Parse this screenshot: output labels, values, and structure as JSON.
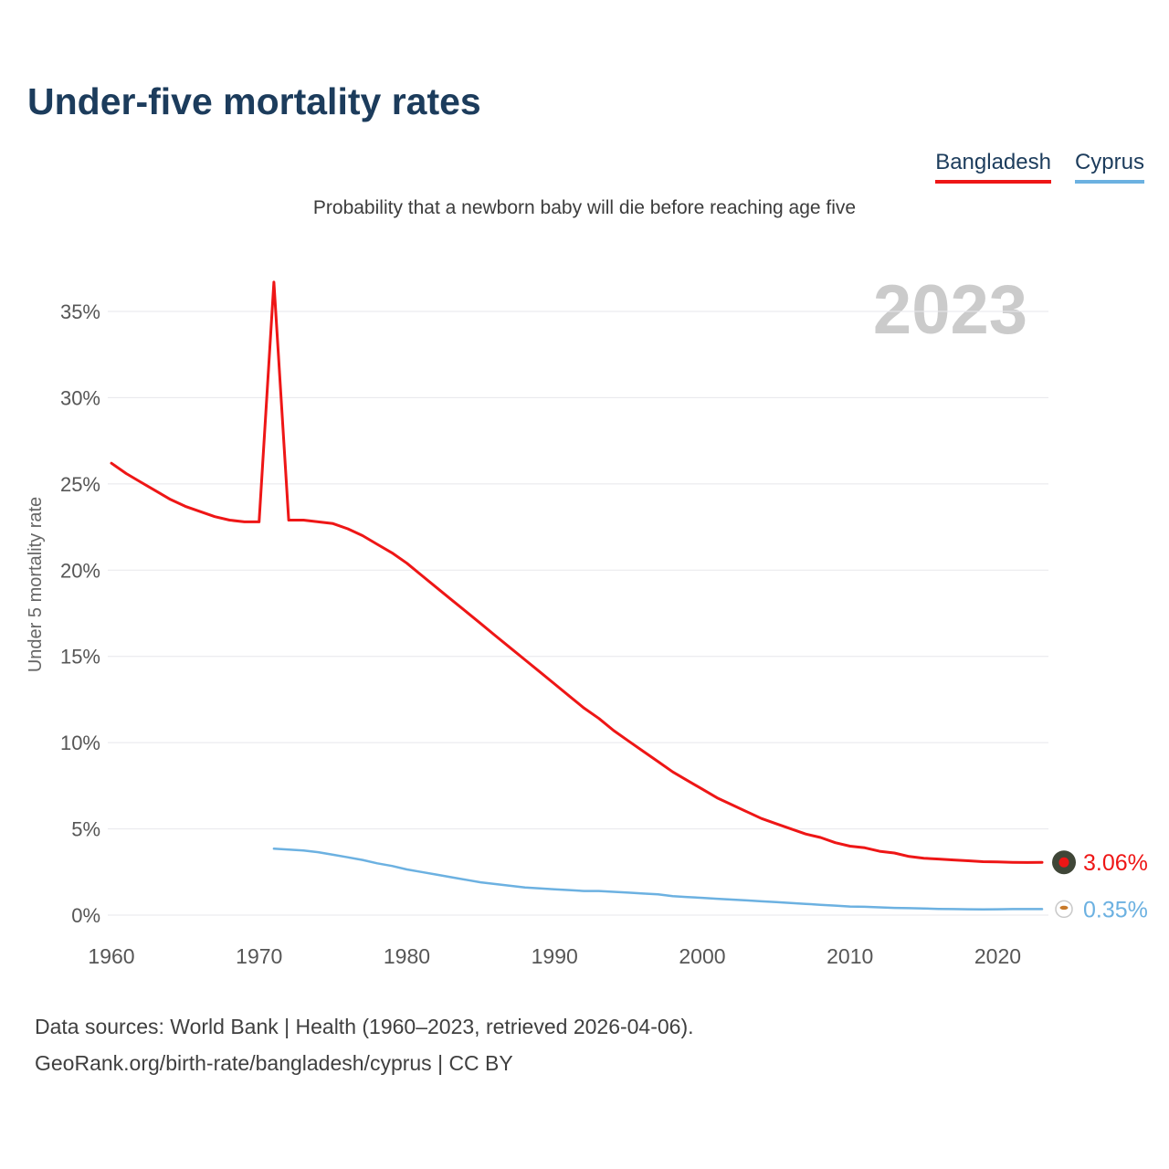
{
  "header": {
    "title": "Under-five mortality rates",
    "subtitle": "Probability that a newborn baby will die before reaching age five"
  },
  "footer": {
    "line1": "Data sources: World Bank | Health (1960–2023, retrieved 2026-04-06).",
    "line2": "GeoRank.org/birth-rate/bangladesh/cyprus | CC BY"
  },
  "chart_data": {
    "type": "line",
    "title": "Under-five mortality rates",
    "subtitle": "Probability that a newborn baby will die before reaching age five",
    "ylabel": "Under 5 mortality rate",
    "watermark": "2023",
    "x_range": [
      1960,
      2023
    ],
    "x_ticks": [
      1960,
      1970,
      1980,
      1990,
      2000,
      2010,
      2020
    ],
    "y_ticks": [
      0,
      5,
      10,
      15,
      20,
      25,
      30,
      35
    ],
    "y_tick_suffix": "%",
    "ylim": [
      0,
      37.5
    ],
    "grid": "horizontal",
    "legend_position": "top-right",
    "series": [
      {
        "name": "Bangladesh",
        "color": "#ee1616",
        "start_year": 1960,
        "end_label": "3.06%",
        "marker": {
          "fill": "#3f4637",
          "stroke": "none",
          "dot": "#ee1616"
        },
        "values": [
          26.2,
          25.6,
          25.1,
          24.6,
          24.1,
          23.7,
          23.4,
          23.1,
          22.9,
          22.8,
          22.8,
          36.7,
          22.9,
          22.9,
          22.8,
          22.7,
          22.4,
          22.0,
          21.5,
          21.0,
          20.4,
          19.7,
          19.0,
          18.3,
          17.6,
          16.9,
          16.2,
          15.5,
          14.8,
          14.1,
          13.4,
          12.7,
          12.0,
          11.4,
          10.7,
          10.1,
          9.5,
          8.9,
          8.3,
          7.8,
          7.3,
          6.8,
          6.4,
          6.0,
          5.6,
          5.3,
          5.0,
          4.7,
          4.5,
          4.2,
          4.0,
          3.9,
          3.7,
          3.6,
          3.4,
          3.3,
          3.25,
          3.2,
          3.15,
          3.1,
          3.08,
          3.06,
          3.05,
          3.06
        ]
      },
      {
        "name": "Cyprus",
        "color": "#6cb1e1",
        "start_year": 1971,
        "end_label": "0.35%",
        "marker": {
          "fill": "#ffffff",
          "stroke": "#c8c8c8",
          "dot": "#c87a2a"
        },
        "values": [
          3.85,
          3.8,
          3.75,
          3.65,
          3.5,
          3.35,
          3.2,
          3.0,
          2.85,
          2.65,
          2.5,
          2.35,
          2.2,
          2.05,
          1.9,
          1.8,
          1.7,
          1.6,
          1.55,
          1.5,
          1.45,
          1.4,
          1.4,
          1.35,
          1.3,
          1.25,
          1.2,
          1.1,
          1.05,
          1.0,
          0.95,
          0.9,
          0.85,
          0.8,
          0.75,
          0.7,
          0.65,
          0.6,
          0.55,
          0.5,
          0.48,
          0.45,
          0.42,
          0.4,
          0.38,
          0.36,
          0.35,
          0.34,
          0.33,
          0.34,
          0.35,
          0.35,
          0.35
        ]
      }
    ]
  }
}
